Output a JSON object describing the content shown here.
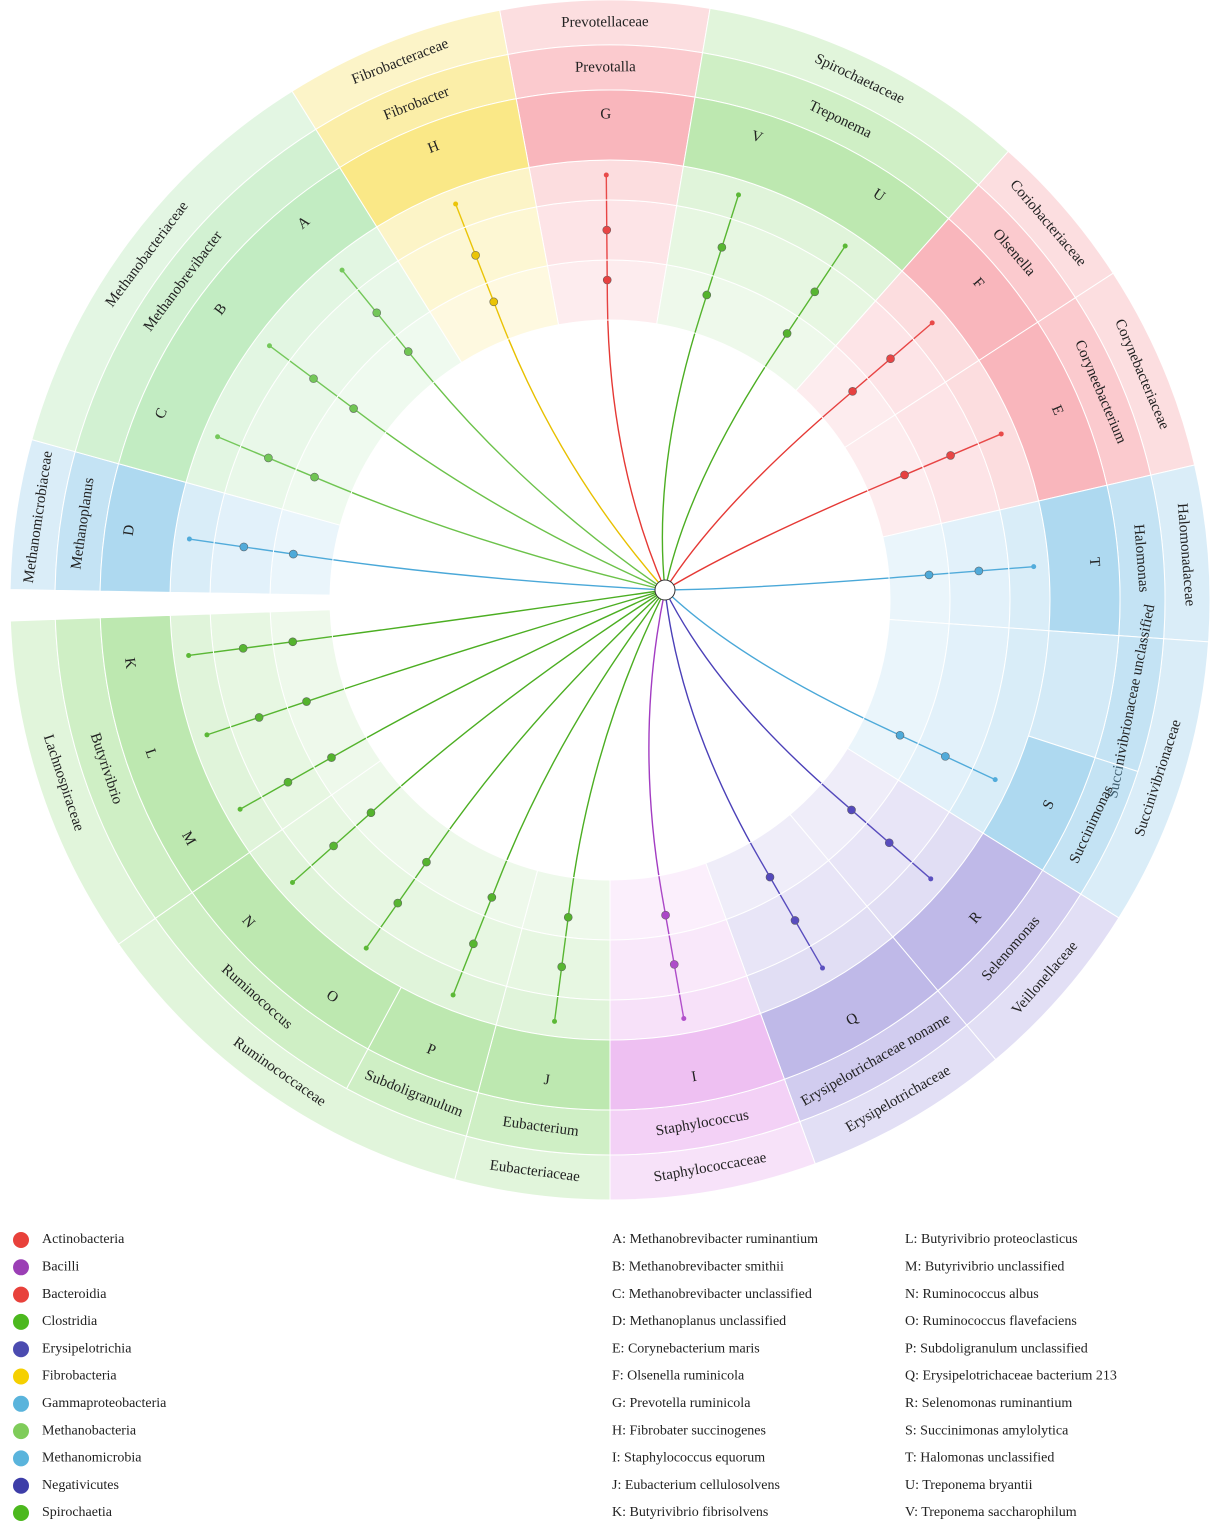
{
  "families": [
    {
      "name": "Prevotellaceae",
      "color": "#f47a85",
      "line": "#e53935",
      "genera": [
        {
          "name": "Prevotalla",
          "species": [
            "G"
          ]
        }
      ]
    },
    {
      "name": "Spirochaetaceae",
      "color": "#86d66f",
      "line": "#4cae22",
      "genera": [
        {
          "name": "Treponema",
          "species": [
            "V",
            "U"
          ]
        }
      ]
    },
    {
      "name": "Coriobacteriaceae",
      "color": "#f47a85",
      "line": "#e53935",
      "genera": [
        {
          "name": "Olsenella",
          "species": [
            "F"
          ]
        }
      ]
    },
    {
      "name": "Corynebacteriaceae",
      "color": "#f47a85",
      "line": "#e53935",
      "genera": [
        {
          "name": "Coryneebacterium",
          "species": [
            "E"
          ]
        }
      ]
    },
    {
      "name": "Halomonadaceae",
      "color": "#6cb9e4",
      "line": "#4aa8d8",
      "genera": [
        {
          "name": "Halomonas",
          "species": [
            "T"
          ]
        }
      ]
    },
    {
      "name": "Succinivibrionaceae",
      "color": "#6cb9e4",
      "line": "#4aa8d8",
      "genera": [
        {
          "name": "Succinivibrionaceae unclassified",
          "species": []
        },
        {
          "name": "Succinimonas",
          "species": [
            "S"
          ]
        }
      ]
    },
    {
      "name": "Veillonellaceae",
      "color": "#8b7fd6",
      "line": "#4b40b8",
      "genera": [
        {
          "name": "Selenomonas",
          "species": [
            "R"
          ]
        }
      ]
    },
    {
      "name": "Erysipelotrichaceae",
      "color": "#8b7fd6",
      "line": "#4b40b8",
      "genera": [
        {
          "name": "Erysipelotrichaceae noname",
          "species": [
            "Q"
          ]
        }
      ]
    },
    {
      "name": "Staphylococcaceae",
      "color": "#e08ce8",
      "line": "#a23cc2",
      "genera": [
        {
          "name": "Staphylococcus",
          "species": [
            "I"
          ]
        }
      ]
    },
    {
      "name": "Eubacteriaceae",
      "color": "#86d66f",
      "line": "#4cae22",
      "genera": [
        {
          "name": "Eubacterium",
          "species": [
            "J"
          ]
        }
      ]
    },
    {
      "name": "Ruminococcaceae",
      "color": "#86d66f",
      "line": "#4cae22",
      "genera": [
        {
          "name": "Subdoligranulum",
          "species": [
            "P"
          ]
        },
        {
          "name": "Ruminococcus",
          "species": [
            "O",
            "N"
          ]
        }
      ]
    },
    {
      "name": "Lachnospiraceae",
      "color": "#86d66f",
      "line": "#4cae22",
      "genera": [
        {
          "name": "Butyrivibrio",
          "species": [
            "M",
            "L",
            "K"
          ]
        }
      ]
    },
    {
      "name": "Methanomicrobiaceae",
      "color": "#6cb9e4",
      "line": "#4aa8d8",
      "genera": [
        {
          "name": "Methanoplanus",
          "species": [
            "D"
          ]
        }
      ]
    },
    {
      "name": "Methanobacteriaceae",
      "color": "#8fdc8f",
      "line": "#6cc24a",
      "genera": [
        {
          "name": "Methanobrevibacter",
          "species": [
            "C",
            "B",
            "A"
          ]
        }
      ]
    },
    {
      "name": "Fibrobacteraceae",
      "color": "#f5d525",
      "line": "#e8c000",
      "genera": [
        {
          "name": "Fibrobacter",
          "species": [
            "H"
          ]
        }
      ]
    }
  ],
  "classes": [
    {
      "name": "Actinobacteria",
      "color": "#e8413b"
    },
    {
      "name": "Bacilli",
      "color": "#9b3fb5"
    },
    {
      "name": "Bacteroidia",
      "color": "#e8413b"
    },
    {
      "name": "Clostridia",
      "color": "#4cb81e"
    },
    {
      "name": "Erysipelotrichia",
      "color": "#4b4bb0"
    },
    {
      "name": "Fibrobacteria",
      "color": "#f5d000"
    },
    {
      "name": "Gammaproteobacteria",
      "color": "#5ab4dc"
    },
    {
      "name": "Methanobacteria",
      "color": "#7fcc5a"
    },
    {
      "name": "Methanomicrobia",
      "color": "#5ab4dc"
    },
    {
      "name": "Negativicutes",
      "color": "#3d3da8"
    },
    {
      "name": "Spirochaetia",
      "color": "#4cb81e"
    }
  ],
  "key": [
    "A: Methanobrevibacter ruminantium",
    "B: Methanobrevibacter smithii",
    "C: Methanobrevibacter unclassified",
    "D: Methanoplanus unclassified",
    "E: Corynebacterium maris",
    "F: Olsenella ruminicola",
    "G: Prevotella ruminicola",
    "H: Fibrobater succinogenes",
    "I: Staphylococcus equorum",
    "J: Eubacterium cellulosolvens",
    "K: Butyrivibrio fibrisolvens",
    "L: Butyrivibrio proteoclasticus",
    "M: Butyrivibrio unclassified",
    "N: Ruminococcus albus",
    "O: Ruminococcus flavefaciens",
    "P: Subdoligranulum unclassified",
    "Q: Erysipelotrichaceae bacterium 213",
    "R: Selenomonas ruminantium",
    "S: Succinimonas amylolytica",
    "T: Halomonas unclassified",
    "U: Treponema bryantii",
    "V: Treponema saccharophilum"
  ]
}
